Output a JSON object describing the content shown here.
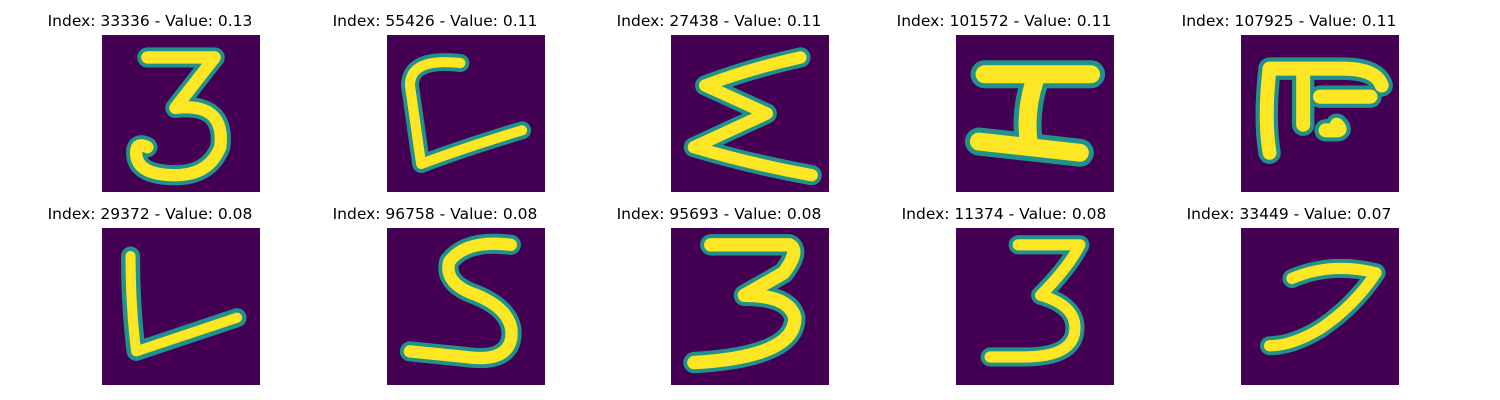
{
  "panels": [
    {
      "title": "Index: 33336 - Value: 0.13",
      "glyph": "three-a"
    },
    {
      "title": "Index: 55426 - Value: 0.11",
      "glyph": "l-curl"
    },
    {
      "title": "Index: 27438 - Value: 0.11",
      "glyph": "sigma"
    },
    {
      "title": "Index: 101572 - Value: 0.11",
      "glyph": "i-beam"
    },
    {
      "title": "Index: 107925 - Value: 0.11",
      "glyph": "glyph-pi"
    },
    {
      "title": "Index: 29372 - Value: 0.08",
      "glyph": "l-shape"
    },
    {
      "title": "Index: 96758 - Value: 0.08",
      "glyph": "five"
    },
    {
      "title": "Index: 95693 - Value: 0.08",
      "glyph": "three-b"
    },
    {
      "title": "Index: 11374 - Value: 0.08",
      "glyph": "three-c"
    },
    {
      "title": "Index: 33449 - Value: 0.07",
      "glyph": "seven"
    }
  ],
  "colors": {
    "background": "#440154",
    "stroke": "#fde725",
    "edge": "#21918c",
    "mid": "#5ec962"
  }
}
